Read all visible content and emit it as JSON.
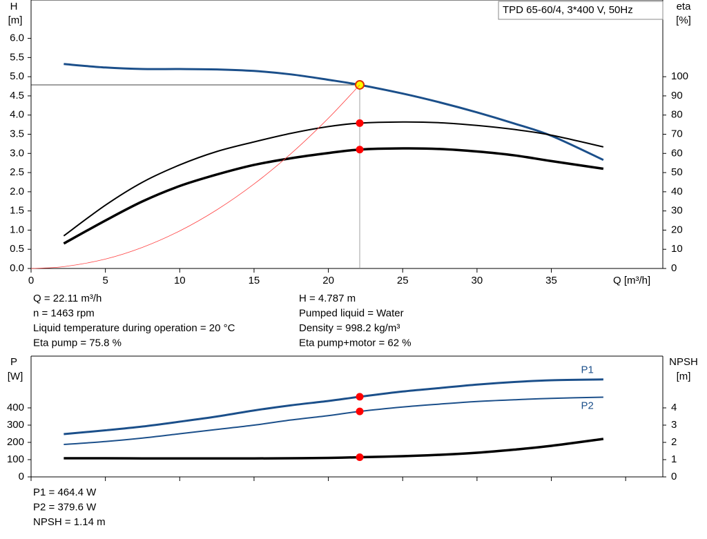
{
  "title": "TPD 65-60/4, 3*400 V, 50Hz",
  "chart_data": [
    {
      "type": "line",
      "ylabel": "H",
      "yunit": "[m]",
      "y2label": "eta",
      "y2unit": "[%]",
      "xlabel": "Q [m³/h]",
      "x": [
        0,
        2.2,
        5,
        7.5,
        10,
        12.5,
        15,
        17.5,
        20,
        22.11,
        25,
        27.5,
        30,
        32.5,
        35,
        38.5
      ],
      "xlim": [
        0,
        42.5
      ],
      "xticks": [
        0,
        5,
        10,
        15,
        20,
        25,
        30,
        35
      ],
      "xtick_labels": true,
      "ylim": [
        0,
        7
      ],
      "yticks": [
        {
          "value": 0,
          "label": "0.0"
        },
        {
          "value": 0.5,
          "label": "0.5"
        },
        {
          "value": 1,
          "label": "1.0"
        },
        {
          "value": 1.5,
          "label": "1.5"
        },
        {
          "value": 2,
          "label": "2.0"
        },
        {
          "value": 2.5,
          "label": "2.5"
        },
        {
          "value": 3,
          "label": "3.0"
        },
        {
          "value": 3.5,
          "label": "3.5"
        },
        {
          "value": 4,
          "label": "4.0"
        },
        {
          "value": 4.5,
          "label": "4.5"
        },
        {
          "value": 5,
          "label": "5.0"
        },
        {
          "value": 5.5,
          "label": "5.5"
        },
        {
          "value": 6,
          "label": "6.0"
        }
      ],
      "y2lim": [
        0,
        140
      ],
      "y2ticks": [
        0,
        10,
        20,
        30,
        40,
        50,
        60,
        70,
        80,
        90,
        100
      ],
      "marker_x": 22.11,
      "crosshair": true,
      "series": [
        {
          "color": "#1b4f8a",
          "width": 3,
          "marker": true,
          "marker_color": "#ffff00",
          "values": [
            null,
            5.33,
            5.24,
            5.2,
            5.2,
            5.19,
            5.15,
            5.06,
            4.92,
            4.787,
            4.56,
            4.33,
            4.07,
            3.78,
            3.46,
            2.83
          ]
        },
        {
          "color": "#000000",
          "width": 2,
          "axis": "y2",
          "marker": true,
          "values": [
            null,
            17,
            33,
            45,
            54,
            61,
            66,
            70.5,
            74,
            75.8,
            76.4,
            76,
            74.6,
            72.5,
            69.5,
            63.4
          ]
        },
        {
          "color": "#000000",
          "width": 3.5,
          "axis": "y2",
          "marker": true,
          "values": [
            null,
            13,
            25,
            35,
            43,
            49,
            54,
            57.5,
            60.2,
            62,
            62.6,
            62.3,
            61,
            59,
            56,
            52
          ]
        },
        {
          "color": "#ff4040",
          "width": 0.8,
          "values": [
            0,
            0.047,
            0.245,
            0.551,
            0.979,
            1.53,
            2.203,
            2.999,
            3.917,
            4.787,
            null,
            null,
            null,
            null,
            null,
            null
          ]
        }
      ],
      "info_left": [
        "Q = 22.11 m³/h",
        "n = 1463 rpm",
        "Liquid temperature during operation = 20 °C",
        "Eta pump = 75.8 %"
      ],
      "info_right": [
        "H = 4.787 m",
        "Pumped liquid = Water",
        "Density = 998.2 kg/m³",
        "Eta pump+motor = 62 %"
      ]
    },
    {
      "type": "line",
      "ylabel": "P",
      "yunit": "[W]",
      "y2label": "NPSH",
      "y2unit": "[m]",
      "x": [
        0,
        2.2,
        5,
        7.5,
        10,
        12.5,
        15,
        17.5,
        20,
        22.11,
        25,
        27.5,
        30,
        32.5,
        35,
        38.5
      ],
      "xlim": [
        0,
        42.5
      ],
      "xticks": [
        0,
        5,
        10,
        15,
        20,
        25,
        30,
        35,
        40
      ],
      "xtick_labels": false,
      "ylim": [
        0,
        700
      ],
      "yticks": [
        0,
        100,
        200,
        300,
        400
      ],
      "y2lim": [
        0,
        7
      ],
      "y2ticks": [
        0,
        1,
        2,
        3,
        4
      ],
      "marker_x": 22.11,
      "crosshair": false,
      "series": [
        {
          "name": "P1",
          "color": "#1b4f8a",
          "width": 3,
          "marker": true,
          "values": [
            null,
            248,
            270,
            292,
            320,
            350,
            385,
            415,
            440,
            464.4,
            495,
            515,
            535,
            550,
            560,
            565
          ]
        },
        {
          "name": "P2",
          "color": "#1b4f8a",
          "width": 2,
          "marker": true,
          "values": [
            null,
            188,
            205,
            225,
            250,
            275,
            300,
            330,
            355,
            379.6,
            405,
            422,
            437,
            447,
            455,
            462
          ]
        },
        {
          "color": "#000000",
          "width": 3.5,
          "axis": "y2",
          "marker": true,
          "values": [
            null,
            1.08,
            1.08,
            1.07,
            1.07,
            1.07,
            1.07,
            1.08,
            1.1,
            1.14,
            1.2,
            1.28,
            1.4,
            1.58,
            1.8,
            2.2
          ]
        }
      ],
      "info_left": [
        "P1 = 464.4 W",
        "P2 = 379.6 W",
        "NPSH = 1.14 m"
      ]
    }
  ]
}
